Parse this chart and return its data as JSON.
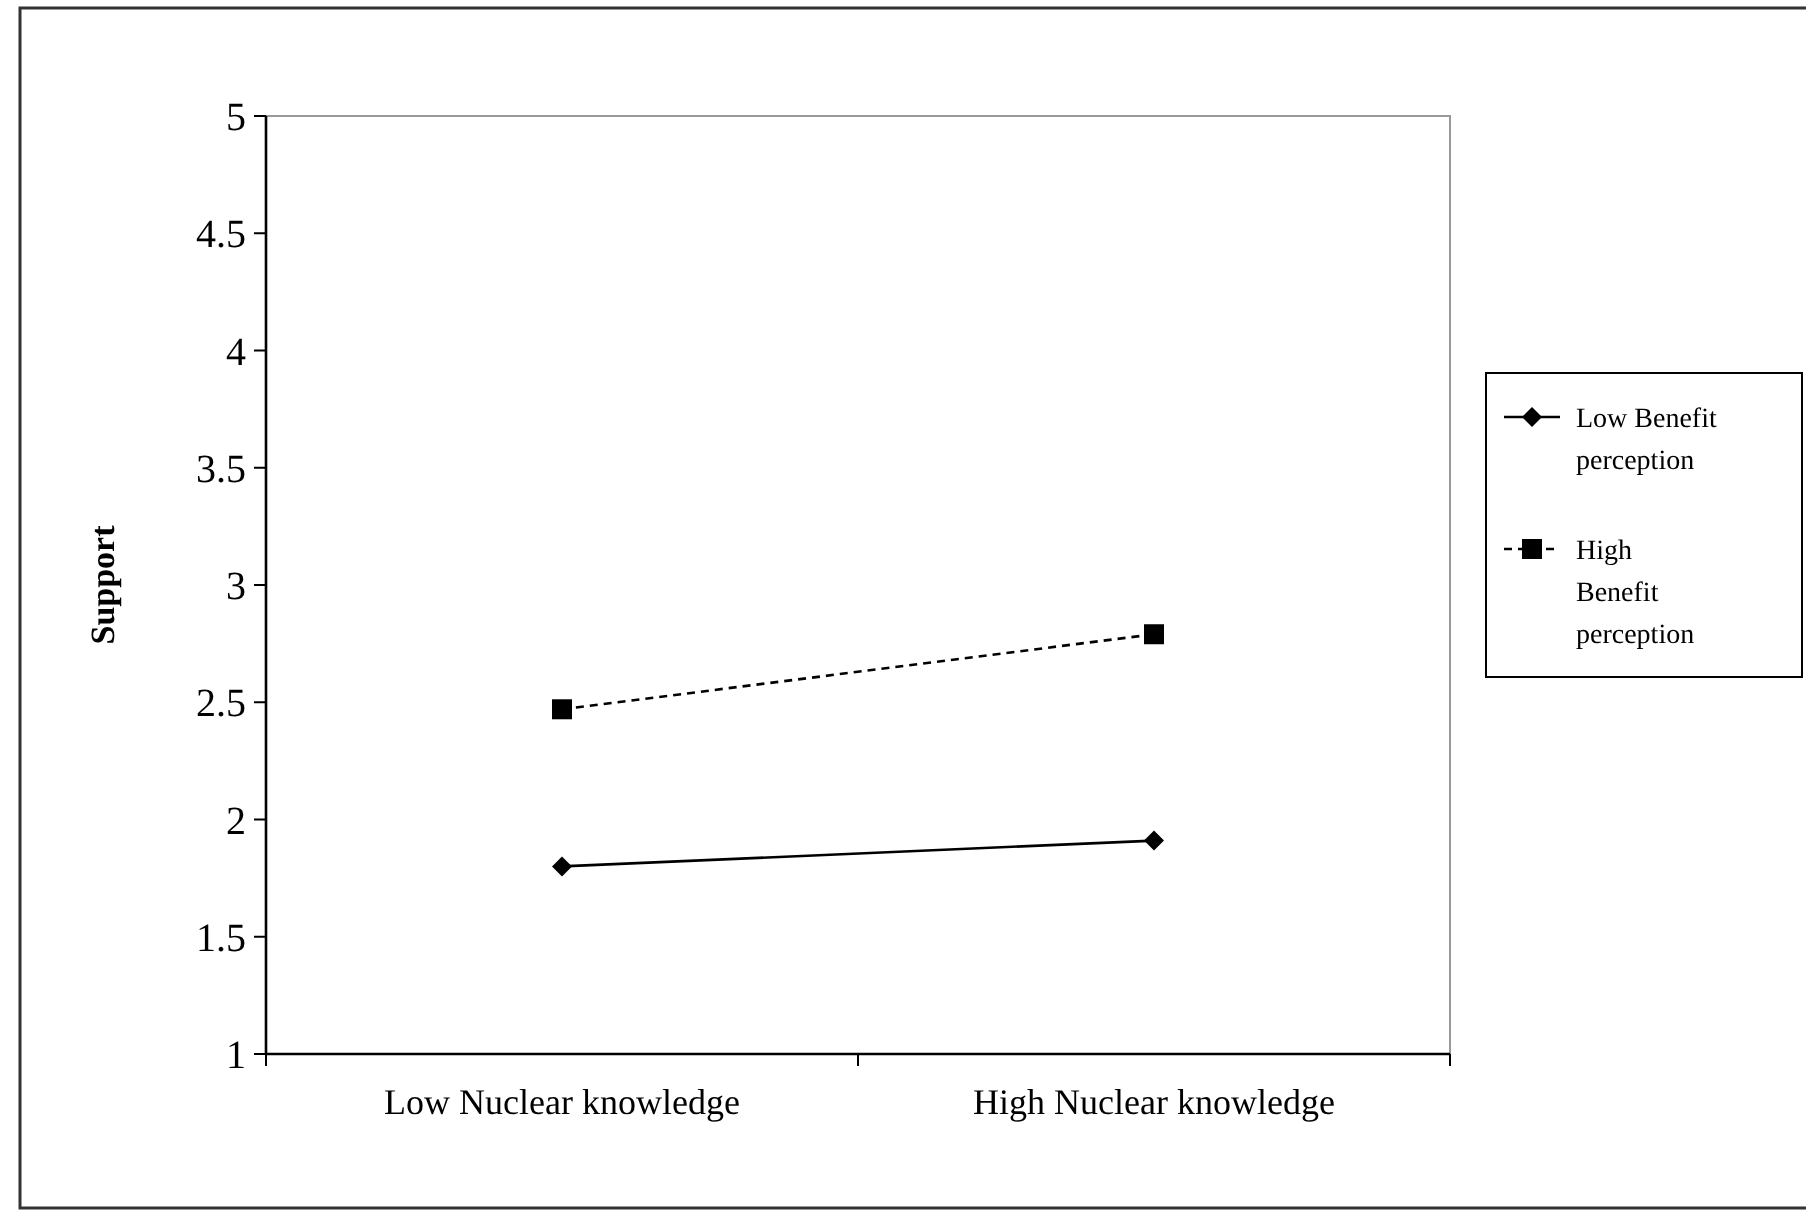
{
  "chart_data": {
    "type": "line",
    "ylabel": "Support",
    "categories": [
      "Low Nuclear knowledge",
      "High Nuclear knowledge"
    ],
    "series": [
      {
        "name": "Low Benefit perception",
        "color": "#000000",
        "values": [
          1.8,
          1.91
        ],
        "marker": "diamond",
        "line_style": "solid"
      },
      {
        "name": "High Benefit perception",
        "color": "#000000",
        "values": [
          2.47,
          2.79
        ],
        "marker": "square",
        "line_style": "dashed"
      }
    ],
    "ylim": [
      1,
      5
    ],
    "yticks": [
      1,
      1.5,
      2,
      2.5,
      3,
      3.5,
      4,
      4.5,
      5
    ],
    "grid": false,
    "legend": "right"
  }
}
